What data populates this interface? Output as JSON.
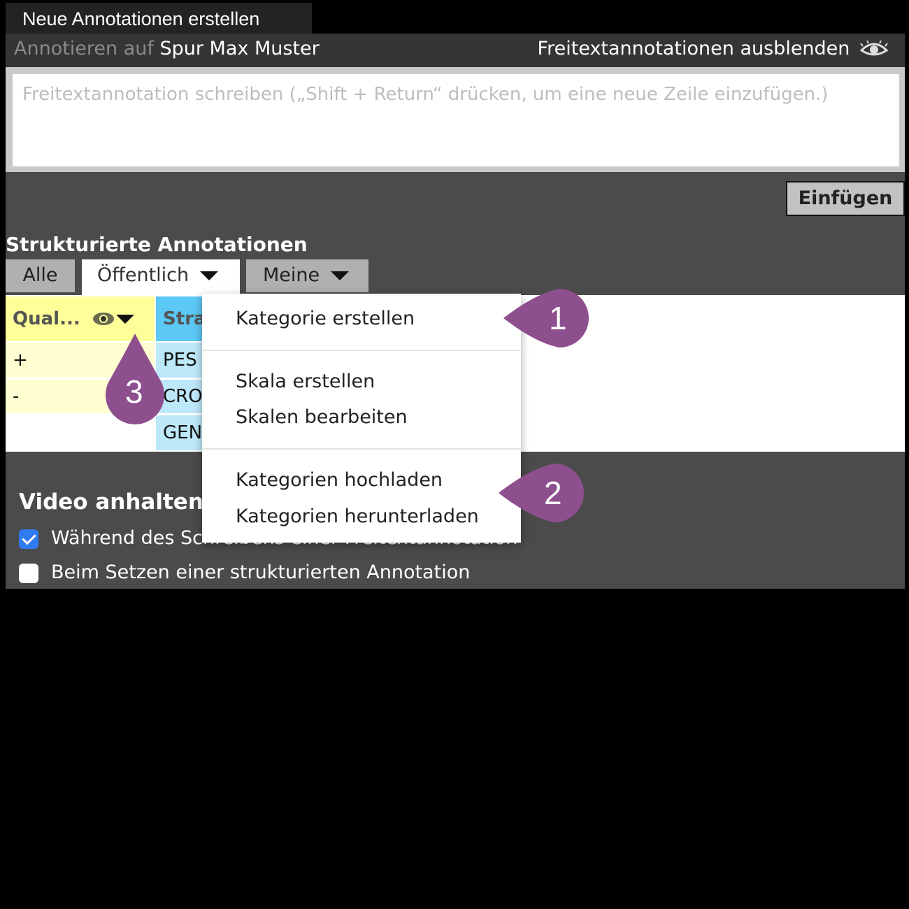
{
  "title_tab": "Neue Annotationen erstellen",
  "header": {
    "prefix": "Annotieren auf",
    "track": "Spur Max Muster",
    "hide_label": "Freitextannotationen ausblenden",
    "hide_icon": "eye-icon"
  },
  "freetext": {
    "placeholder": "Freitextannotation schreiben („Shift + Return“ drücken, um eine neue Zeile einzufügen.)",
    "value": ""
  },
  "insert_button": "Einfügen",
  "structured": {
    "heading": "Strukturierte Annotationen",
    "tabs": [
      {
        "label": "Alle"
      },
      {
        "label": "Öffentlich"
      },
      {
        "label": "Meine"
      }
    ],
    "categories": [
      {
        "name": "Qual...",
        "color": "#ffff99",
        "labels": [
          "+",
          "-"
        ]
      },
      {
        "name": "Stra",
        "color": "#5bc8f5",
        "labels": [
          "PES",
          "CRO",
          "GEN"
        ]
      }
    ]
  },
  "dropdown_menu": {
    "items": [
      "Kategorie erstellen",
      "Skala erstellen",
      "Skalen bearbeiten",
      "Kategorien hochladen",
      "Kategorien herunterladen"
    ]
  },
  "video_pause": {
    "heading": "Video anhalten",
    "options": [
      {
        "label": "Während des Schreibens einer Freitextannotation",
        "checked": true
      },
      {
        "label": "Beim Setzen einer strukturierten Annotation",
        "checked": false
      }
    ]
  },
  "callouts": [
    "1",
    "2",
    "3"
  ],
  "marker_color": "#8e4f8e"
}
